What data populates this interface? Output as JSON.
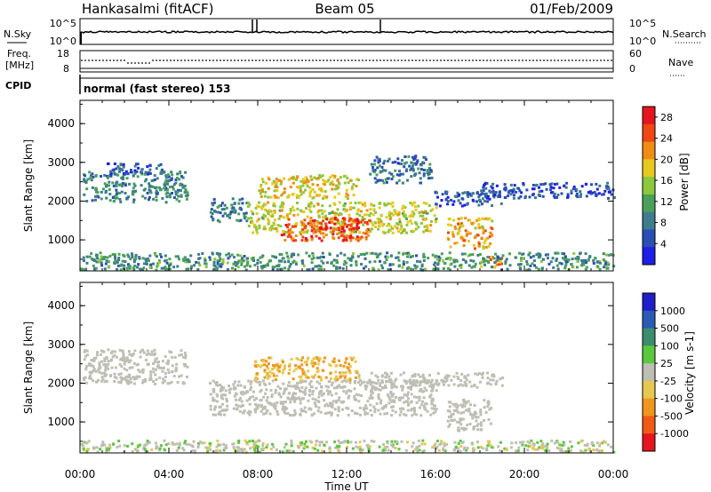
{
  "header": {
    "station": "Hankasalmi (fitACF)",
    "beam": "Beam 05",
    "date": "01/Feb/2009"
  },
  "noise_panel": {
    "left_label": "N.Sky",
    "right_label": "N.Search",
    "top_tick": "10^5",
    "bottom_tick": "10^0",
    "right_top_tick": "10^5",
    "right_bottom_tick": "10^0"
  },
  "freq_panel": {
    "left_label_line1": "Freq.",
    "left_label_line2": "[MHz]",
    "right_label": "Nave",
    "left_ticks": [
      "18",
      "8"
    ],
    "right_ticks": [
      "60",
      "0"
    ]
  },
  "cpid": {
    "label": "CPID",
    "mode_text": "normal (fast stereo) 153"
  },
  "chart_data": [
    {
      "type": "heatmap",
      "title": "Power",
      "ylabel": "Slant Range [km]",
      "ylim": [
        200,
        4600
      ],
      "yticks": [
        "1000",
        "2000",
        "3000",
        "4000"
      ],
      "xlabel": "Time UT",
      "xlim": [
        0,
        24
      ],
      "colorbar": {
        "label": "Power [dB]",
        "ticks": [
          "4",
          "8",
          "12",
          "16",
          "20",
          "24",
          "28"
        ],
        "range": [
          0,
          30
        ],
        "colors": [
          "#1e1ee6",
          "#2a4fb4",
          "#3d7c8c",
          "#4aa05a",
          "#8cc83c",
          "#e6c81e",
          "#f08c14",
          "#f04614",
          "#e6141e"
        ]
      },
      "regions": [
        {
          "t0": 0.1,
          "t1": 4.8,
          "r0": 2000,
          "r1": 2800,
          "p": 9
        },
        {
          "t0": 1.2,
          "t1": 3.8,
          "r0": 2700,
          "r1": 3000,
          "p": 6
        },
        {
          "t0": 5.8,
          "t1": 7.5,
          "r0": 1500,
          "r1": 2100,
          "p": 8
        },
        {
          "t0": 7.5,
          "t1": 16.0,
          "r0": 1200,
          "r1": 2000,
          "p": 17
        },
        {
          "t0": 9.0,
          "t1": 13.0,
          "r0": 1000,
          "r1": 1600,
          "p": 24
        },
        {
          "t0": 10.5,
          "t1": 12.5,
          "r0": 1300,
          "r1": 1600,
          "p": 27
        },
        {
          "t0": 8.0,
          "t1": 12.5,
          "r0": 2100,
          "r1": 2700,
          "p": 18
        },
        {
          "t0": 13.0,
          "t1": 15.8,
          "r0": 2500,
          "r1": 3200,
          "p": 7
        },
        {
          "t0": 15.8,
          "t1": 19.0,
          "r0": 1900,
          "r1": 2300,
          "p": 6
        },
        {
          "t0": 16.5,
          "t1": 18.5,
          "r0": 800,
          "r1": 1600,
          "p": 20
        },
        {
          "t0": 18.0,
          "t1": 24.0,
          "r0": 2100,
          "r1": 2500,
          "p": 5
        },
        {
          "t0": 18.0,
          "t1": 19.0,
          "r0": 300,
          "r1": 600,
          "p": 22
        },
        {
          "t0": 0.0,
          "t1": 24.0,
          "r0": 250,
          "r1": 700,
          "p": 10
        }
      ]
    },
    {
      "type": "heatmap",
      "title": "Velocity",
      "ylabel": "Slant Range [km]",
      "ylim": [
        200,
        4600
      ],
      "yticks": [
        "1000",
        "2000",
        "3000",
        "4000"
      ],
      "xlabel": "Time UT",
      "xlim": [
        0,
        24
      ],
      "xticks": [
        "00:00",
        "04:00",
        "08:00",
        "12:00",
        "16:00",
        "20:00",
        "00:00"
      ],
      "colorbar": {
        "label": "Velocity [m s-1]",
        "ticks": [
          "1000",
          "500",
          "100",
          "25",
          "-25",
          "-100",
          "-500",
          "-1000"
        ],
        "range": [
          -1200,
          1200
        ],
        "colors": [
          "#1e1ec8",
          "#2a5ab4",
          "#3c8c6e",
          "#5ac83c",
          "#bebeb4",
          "#e6c850",
          "#f0961e",
          "#f05a14",
          "#e6141e"
        ]
      },
      "regions": [
        {
          "t0": 0.1,
          "t1": 4.8,
          "r0": 2000,
          "r1": 2900,
          "v": 0
        },
        {
          "t0": 5.8,
          "t1": 16.0,
          "r0": 1200,
          "r1": 2100,
          "v": 0
        },
        {
          "t0": 7.8,
          "t1": 12.5,
          "r0": 2100,
          "r1": 2700,
          "v": -400
        },
        {
          "t0": 12.5,
          "t1": 19.0,
          "r0": 1900,
          "r1": 2300,
          "v": 0
        },
        {
          "t0": 16.5,
          "t1": 18.5,
          "r0": 800,
          "r1": 1600,
          "v": 0
        },
        {
          "t0": 0.0,
          "t1": 24.0,
          "r0": 250,
          "r1": 550,
          "v": 30
        }
      ]
    }
  ]
}
